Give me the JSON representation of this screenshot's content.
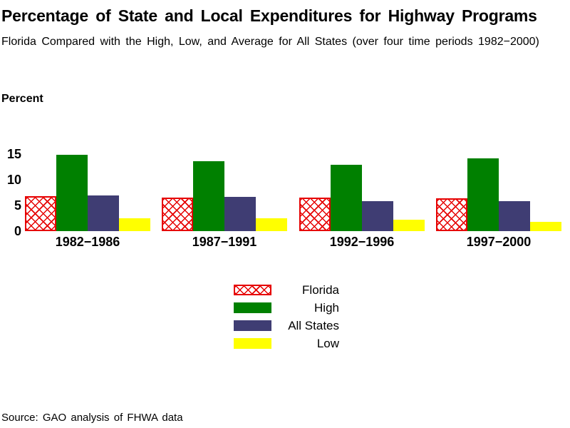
{
  "header": {
    "title": "Percentage of State and Local Expenditures for Highway Programs",
    "subtitle": "Florida Compared with the High, Low, and Average for All States (over four time periods 1982−2000)"
  },
  "chart_data": {
    "type": "bar",
    "title": "Percentage of State and Local Expenditures for Highway Programs",
    "subtitle": "Florida Compared with the High, Low, and Average for All States (over four time periods 1982−2000)",
    "ylabel": "Percent",
    "xlabel": "",
    "ylim": [
      0,
      15
    ],
    "yticks": [
      0,
      5,
      10,
      15
    ],
    "grid": false,
    "legend_position": "bottom-center",
    "categories": [
      "1982−1986",
      "1987−1991",
      "1992−1996",
      "1997−2000"
    ],
    "series": [
      {
        "name": "Florida",
        "style": "red-crosshatch",
        "color": "#e60000",
        "values": [
          6.8,
          6.5,
          6.5,
          6.4
        ]
      },
      {
        "name": "High",
        "style": "solid",
        "color": "#008000",
        "values": [
          14.9,
          13.6,
          12.9,
          14.2
        ]
      },
      {
        "name": "All States",
        "style": "solid",
        "color": "#3F3D73",
        "values": [
          7.0,
          6.7,
          5.8,
          5.8
        ]
      },
      {
        "name": "Low",
        "style": "solid",
        "color": "#FFFF00",
        "values": [
          2.5,
          2.5,
          2.2,
          1.8
        ]
      }
    ]
  },
  "footer": {
    "source": "Source: GAO analysis of FHWA data"
  },
  "layout_colors": {
    "florida_hatch": "#e60000",
    "high_green": "#008000",
    "all_states_navy": "#3F3D73",
    "low_yellow": "#FFFF00"
  }
}
